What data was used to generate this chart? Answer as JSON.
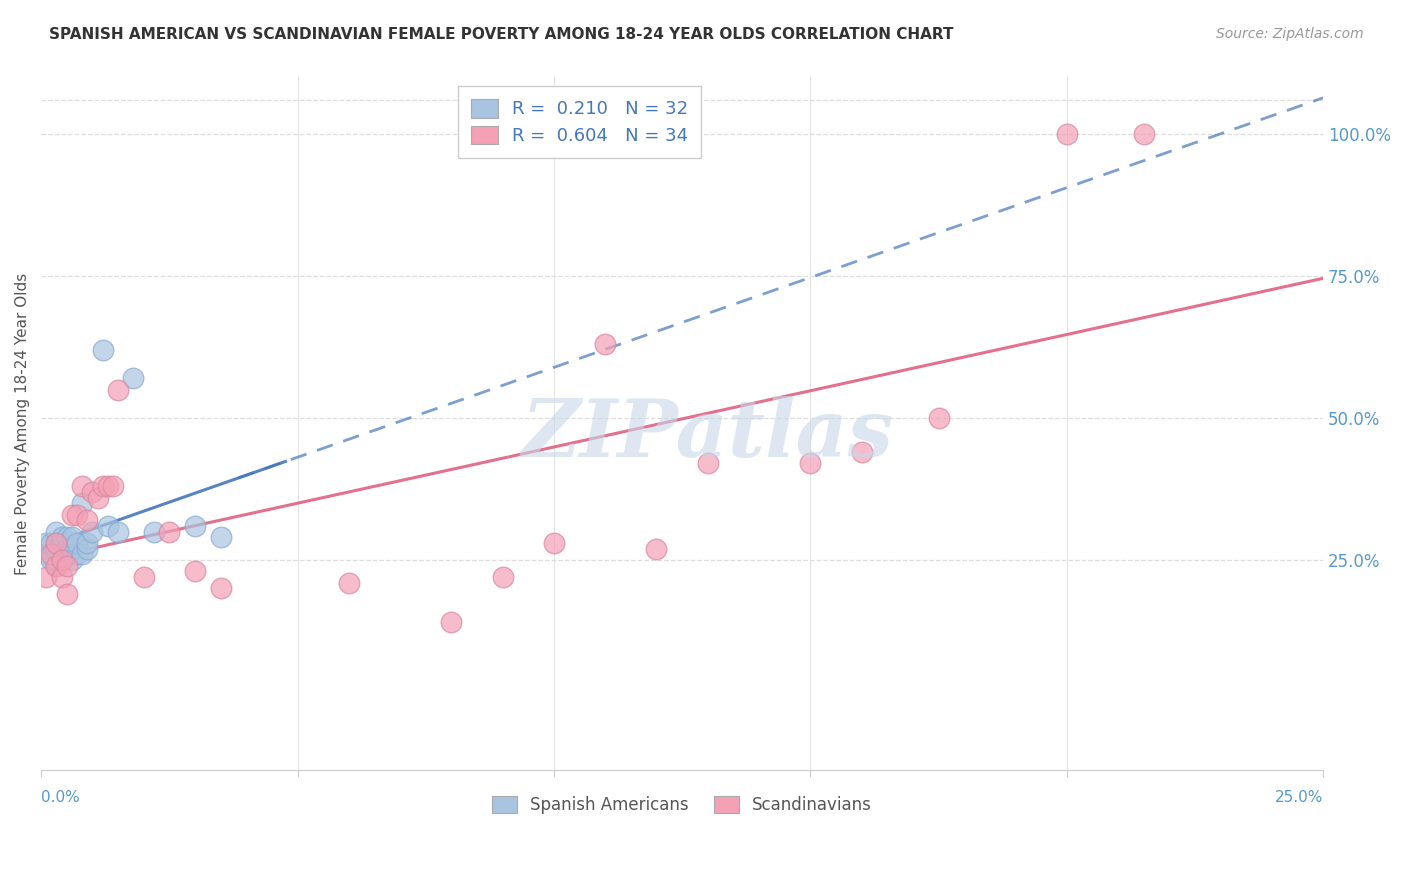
{
  "title": "SPANISH AMERICAN VS SCANDINAVIAN FEMALE POVERTY AMONG 18-24 YEAR OLDS CORRELATION CHART",
  "source": "Source: ZipAtlas.com",
  "ylabel": "Female Poverty Among 18-24 Year Olds",
  "right_yticks": [
    0.25,
    0.5,
    0.75,
    1.0
  ],
  "right_yticklabels": [
    "25.0%",
    "50.0%",
    "75.0%",
    "100.0%"
  ],
  "blue_R": 0.21,
  "blue_N": 32,
  "pink_R": 0.604,
  "pink_N": 34,
  "blue_color": "#a8c4e0",
  "pink_color": "#f4a0b5",
  "blue_line_color": "#4477bb",
  "pink_line_color": "#e06080",
  "legend_blue_label": "Spanish Americans",
  "legend_pink_label": "Scandinavians",
  "blue_x": [
    0.001,
    0.001,
    0.002,
    0.002,
    0.003,
    0.003,
    0.003,
    0.003,
    0.004,
    0.004,
    0.004,
    0.004,
    0.005,
    0.005,
    0.005,
    0.006,
    0.006,
    0.006,
    0.007,
    0.007,
    0.008,
    0.008,
    0.009,
    0.009,
    0.01,
    0.012,
    0.013,
    0.015,
    0.018,
    0.022,
    0.03,
    0.035
  ],
  "blue_y": [
    0.26,
    0.28,
    0.25,
    0.28,
    0.24,
    0.27,
    0.28,
    0.3,
    0.25,
    0.27,
    0.28,
    0.29,
    0.26,
    0.27,
    0.29,
    0.25,
    0.27,
    0.29,
    0.26,
    0.28,
    0.26,
    0.35,
    0.27,
    0.28,
    0.3,
    0.62,
    0.31,
    0.3,
    0.57,
    0.3,
    0.31,
    0.29
  ],
  "pink_x": [
    0.001,
    0.002,
    0.003,
    0.003,
    0.004,
    0.004,
    0.005,
    0.005,
    0.006,
    0.007,
    0.008,
    0.009,
    0.01,
    0.011,
    0.012,
    0.013,
    0.014,
    0.015,
    0.02,
    0.025,
    0.03,
    0.035,
    0.06,
    0.08,
    0.09,
    0.1,
    0.11,
    0.12,
    0.13,
    0.15,
    0.16,
    0.175,
    0.2,
    0.215
  ],
  "pink_y": [
    0.22,
    0.26,
    0.24,
    0.28,
    0.22,
    0.25,
    0.19,
    0.24,
    0.33,
    0.33,
    0.38,
    0.32,
    0.37,
    0.36,
    0.38,
    0.38,
    0.38,
    0.55,
    0.22,
    0.3,
    0.23,
    0.2,
    0.21,
    0.14,
    0.22,
    0.28,
    0.63,
    0.27,
    0.42,
    0.42,
    0.44,
    0.5,
    1.0,
    1.0
  ],
  "blue_slope": 1.8,
  "blue_intercept": 0.215,
  "pink_slope": 3.55,
  "pink_intercept": 0.105,
  "watermark": "ZIPatlas",
  "watermark_color": "#c8d8e8",
  "background_color": "#ffffff",
  "grid_color": "#dddddd",
  "xlim": [
    0.0,
    0.25
  ],
  "ylim": [
    -0.12,
    1.1
  ]
}
